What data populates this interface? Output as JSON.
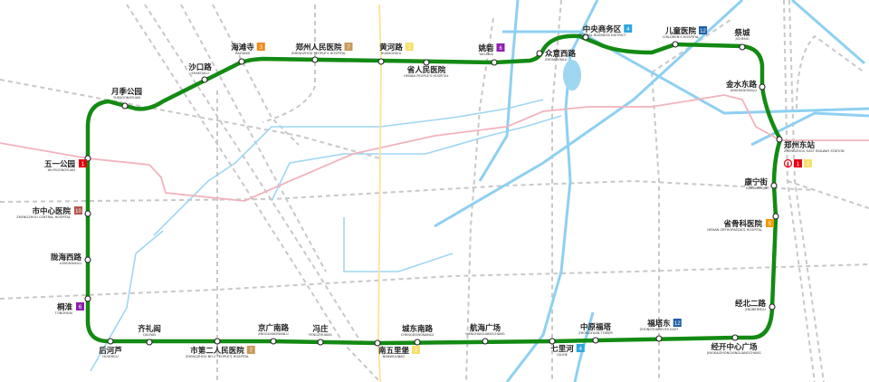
{
  "map": {
    "line_color": "#138a13",
    "stations": [
      {
        "name": "五一公园",
        "pinyin": "WUYIGONGYUAN",
        "transfers": [
          "1"
        ]
      },
      {
        "name": "月季公园",
        "pinyin": "YUEJIGONGYUAN",
        "transfers": []
      },
      {
        "name": "沙口路",
        "pinyin": "SHAKOULU",
        "transfers": []
      },
      {
        "name": "海滩寺",
        "pinyin": "HAITANSI",
        "transfers": [
          "3"
        ]
      },
      {
        "name": "郑州人民医院",
        "pinyin": "ZHENGZHOU PEOPLE'S HOSPITAL",
        "transfers": [
          "7"
        ]
      },
      {
        "name": "黄河路",
        "pinyin": "HUANGHELU",
        "transfers": [
          "2"
        ]
      },
      {
        "name": "省人民医院",
        "pinyin": "HENAN PEOPLE'S HOSPITAL",
        "transfers": []
      },
      {
        "name": "姚砦",
        "pinyin": "YAOZHAI",
        "transfers": [
          "6"
        ]
      },
      {
        "name": "众意西路",
        "pinyin": "ZHONGYIXILU",
        "transfers": []
      },
      {
        "name": "中央商务区",
        "pinyin": "CENTRAL BUSINESS DISTRICT",
        "transfers": [
          "4"
        ]
      },
      {
        "name": "儿童医院",
        "pinyin": "CHILDREN'S HOSPITAL",
        "transfers": [
          "12"
        ]
      },
      {
        "name": "祭城",
        "pinyin": "JICHENG",
        "transfers": []
      },
      {
        "name": "金水东路",
        "pinyin": "JINSHUIDONGLU",
        "transfers": []
      },
      {
        "name": "郑州东站",
        "pinyin": "ZHENGZHOU EAST RAILWAY STATION",
        "transfers": [
          "rail",
          "1",
          "2"
        ]
      },
      {
        "name": "康宁街",
        "pinyin": "KANGNINGJIE",
        "transfers": []
      },
      {
        "name": "省骨科医院",
        "pinyin": "HENAN ORTHOPAEDICS HOSPITAL",
        "transfers": [
          "5"
        ]
      },
      {
        "name": "经北二路",
        "pinyin": "JINGBEIERLU",
        "transfers": []
      },
      {
        "name": "经开中心广场",
        "pinyin": "JINGKAIZHONGXINGUANGCHANG",
        "transfers": []
      },
      {
        "name": "福塔东",
        "pinyin": "ZHONGYUANFUTA EAST",
        "transfers": [
          "12"
        ]
      },
      {
        "name": "中原福塔",
        "pinyin": "ZHONGYUAN TOWER",
        "transfers": []
      },
      {
        "name": "七里河",
        "pinyin": "QILIHE",
        "transfers": [
          "4"
        ]
      },
      {
        "name": "航海广场",
        "pinyin": "HANGHAIGUANGCHANG",
        "transfers": []
      },
      {
        "name": "城东南路",
        "pinyin": "CHENGDONGNANLU",
        "transfers": []
      },
      {
        "name": "南五里堡",
        "pinyin": "NANWULIBAO",
        "transfers": [
          "2"
        ]
      },
      {
        "name": "冯庄",
        "pinyin": "FENGZHUANG",
        "transfers": []
      },
      {
        "name": "京广南路",
        "pinyin": "JINGGUANGNANLU",
        "transfers": []
      },
      {
        "name": "市第二人民医院",
        "pinyin": "ZHENGZHOU NO.2 PEOPLE'S HOSPITAL",
        "transfers": [
          "7"
        ]
      },
      {
        "name": "齐礼阎",
        "pinyin": "QILIYAN",
        "transfers": []
      },
      {
        "name": "后河芦",
        "pinyin": "HOUHELU",
        "transfers": []
      },
      {
        "name": "桐淮",
        "pinyin": "TONGHUAI",
        "transfers": [
          "6"
        ]
      },
      {
        "name": "陇海西路",
        "pinyin": "LONGHAIXILU",
        "transfers": []
      },
      {
        "name": "市中心医院",
        "pinyin": "ZHENGZHOU CENTRAL HOSPITAL",
        "transfers": [
          "10"
        ]
      }
    ],
    "line_colors": {
      "1": "#e60012",
      "2": "#f5d949",
      "3": "#f18b1a",
      "4": "#2ea7e0",
      "5": "#f39800",
      "6": "#8e1fb0",
      "7": "#c99a5b",
      "10": "#b5544c",
      "12": "#1f5fa8",
      "rail": "#e60012"
    }
  }
}
